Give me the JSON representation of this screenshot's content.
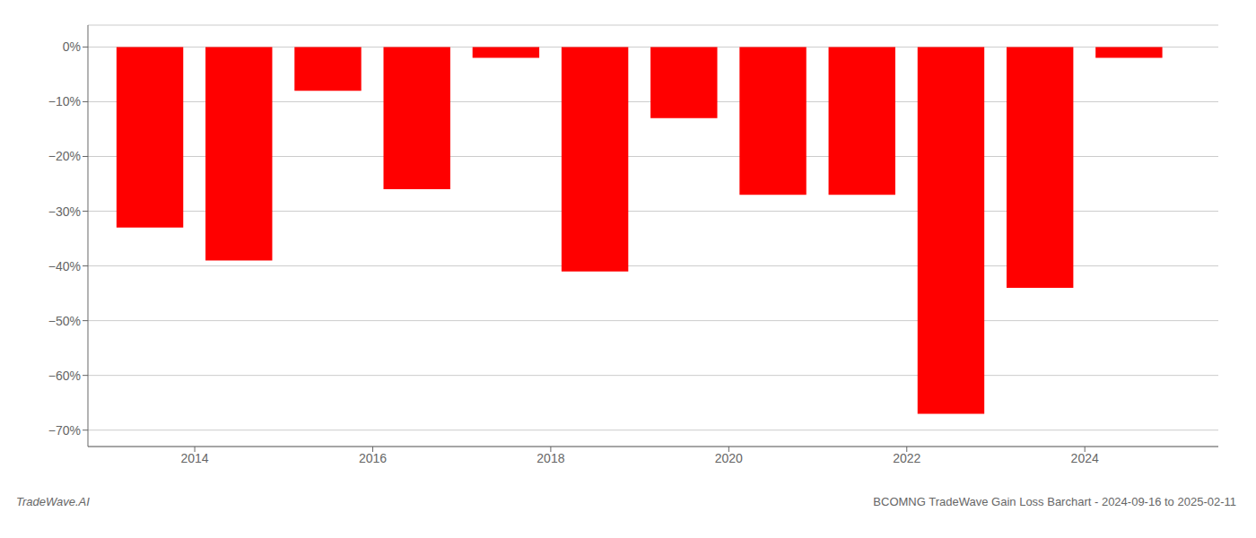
{
  "chart_data": {
    "type": "bar",
    "title": "BCOMNG TradeWave Gain Loss Barchart - 2024-09-16 to 2025-02-11",
    "annotations": [
      "TradeWave.AI"
    ],
    "x": [
      2013.5,
      2014.5,
      2015.5,
      2016.5,
      2017.5,
      2018.5,
      2019.5,
      2020.5,
      2021.5,
      2022.5,
      2023.5,
      2024.5
    ],
    "values": [
      -33,
      -39,
      -8,
      -26,
      -2,
      -41,
      -13,
      -27,
      -27,
      -67,
      -44,
      -2
    ],
    "color": "#ff0000",
    "xlim": [
      2012.8,
      2025.5
    ],
    "xticks": [
      2014,
      2016,
      2018,
      2020,
      2022,
      2024
    ],
    "ylim": [
      -73,
      4
    ],
    "yticks": [
      {
        "value": 0,
        "label": "0%"
      },
      {
        "value": -10,
        "label": "−10%"
      },
      {
        "value": -20,
        "label": "−20%"
      },
      {
        "value": -30,
        "label": "−30%"
      },
      {
        "value": -40,
        "label": "−40%"
      },
      {
        "value": -50,
        "label": "−50%"
      },
      {
        "value": -60,
        "label": "−60%"
      },
      {
        "value": -70,
        "label": "−70%"
      }
    ],
    "grid": true
  }
}
